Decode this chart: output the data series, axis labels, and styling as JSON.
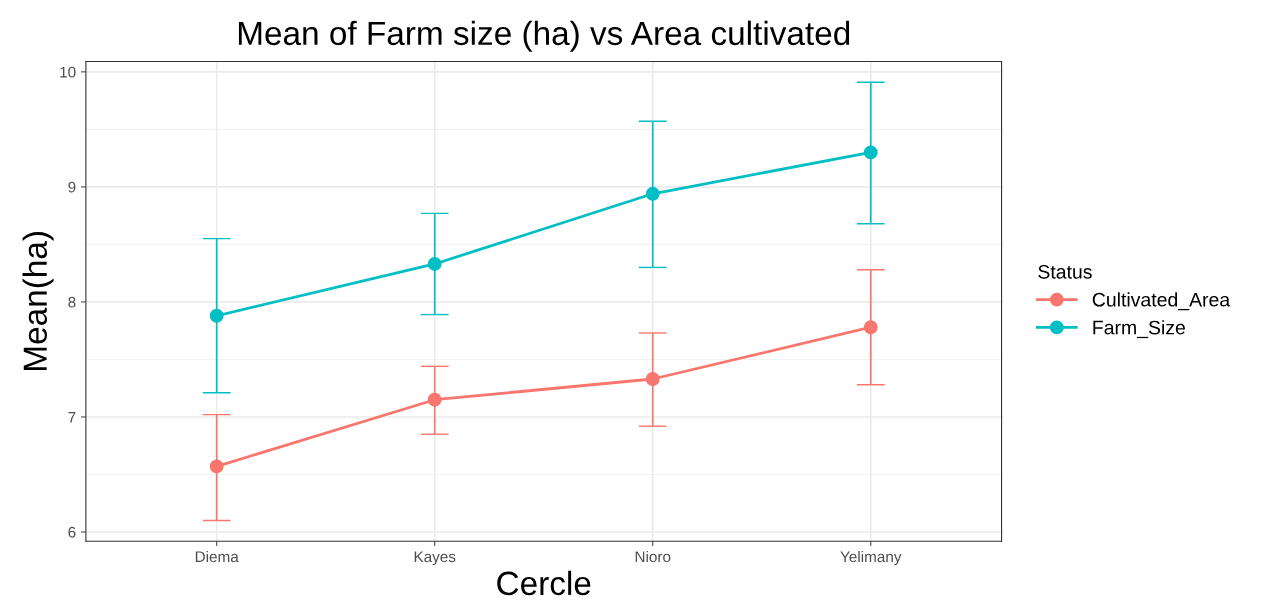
{
  "chart_data": {
    "type": "line",
    "title": "Mean of Farm size (ha) vs Area cultivated",
    "xlabel": "Cercle",
    "ylabel": "Mean(ha)",
    "legend_title": "Status",
    "categories": [
      "Diema",
      "Kayes",
      "Nioro",
      "Yelimany"
    ],
    "series": [
      {
        "name": "Cultivated_Area",
        "color": "#f8766d",
        "values": [
          6.57,
          7.15,
          7.33,
          7.78
        ],
        "errors": [
          [
            6.1,
            7.02
          ],
          [
            6.85,
            7.44
          ],
          [
            6.92,
            7.73
          ],
          [
            7.28,
            8.28
          ]
        ]
      },
      {
        "name": "Farm_Size",
        "color": "#00bfc4",
        "values": [
          7.88,
          8.33,
          8.94,
          9.3
        ],
        "errors": [
          [
            7.21,
            8.55
          ],
          [
            7.89,
            8.77
          ],
          [
            8.3,
            9.57
          ],
          [
            8.68,
            9.91
          ]
        ]
      }
    ],
    "ylim": [
      5.92,
      10.09
    ],
    "yticks": [
      6,
      7,
      8,
      9,
      10
    ],
    "grid": true,
    "legend": "right",
    "marker": "circle",
    "line_style": "solid"
  }
}
